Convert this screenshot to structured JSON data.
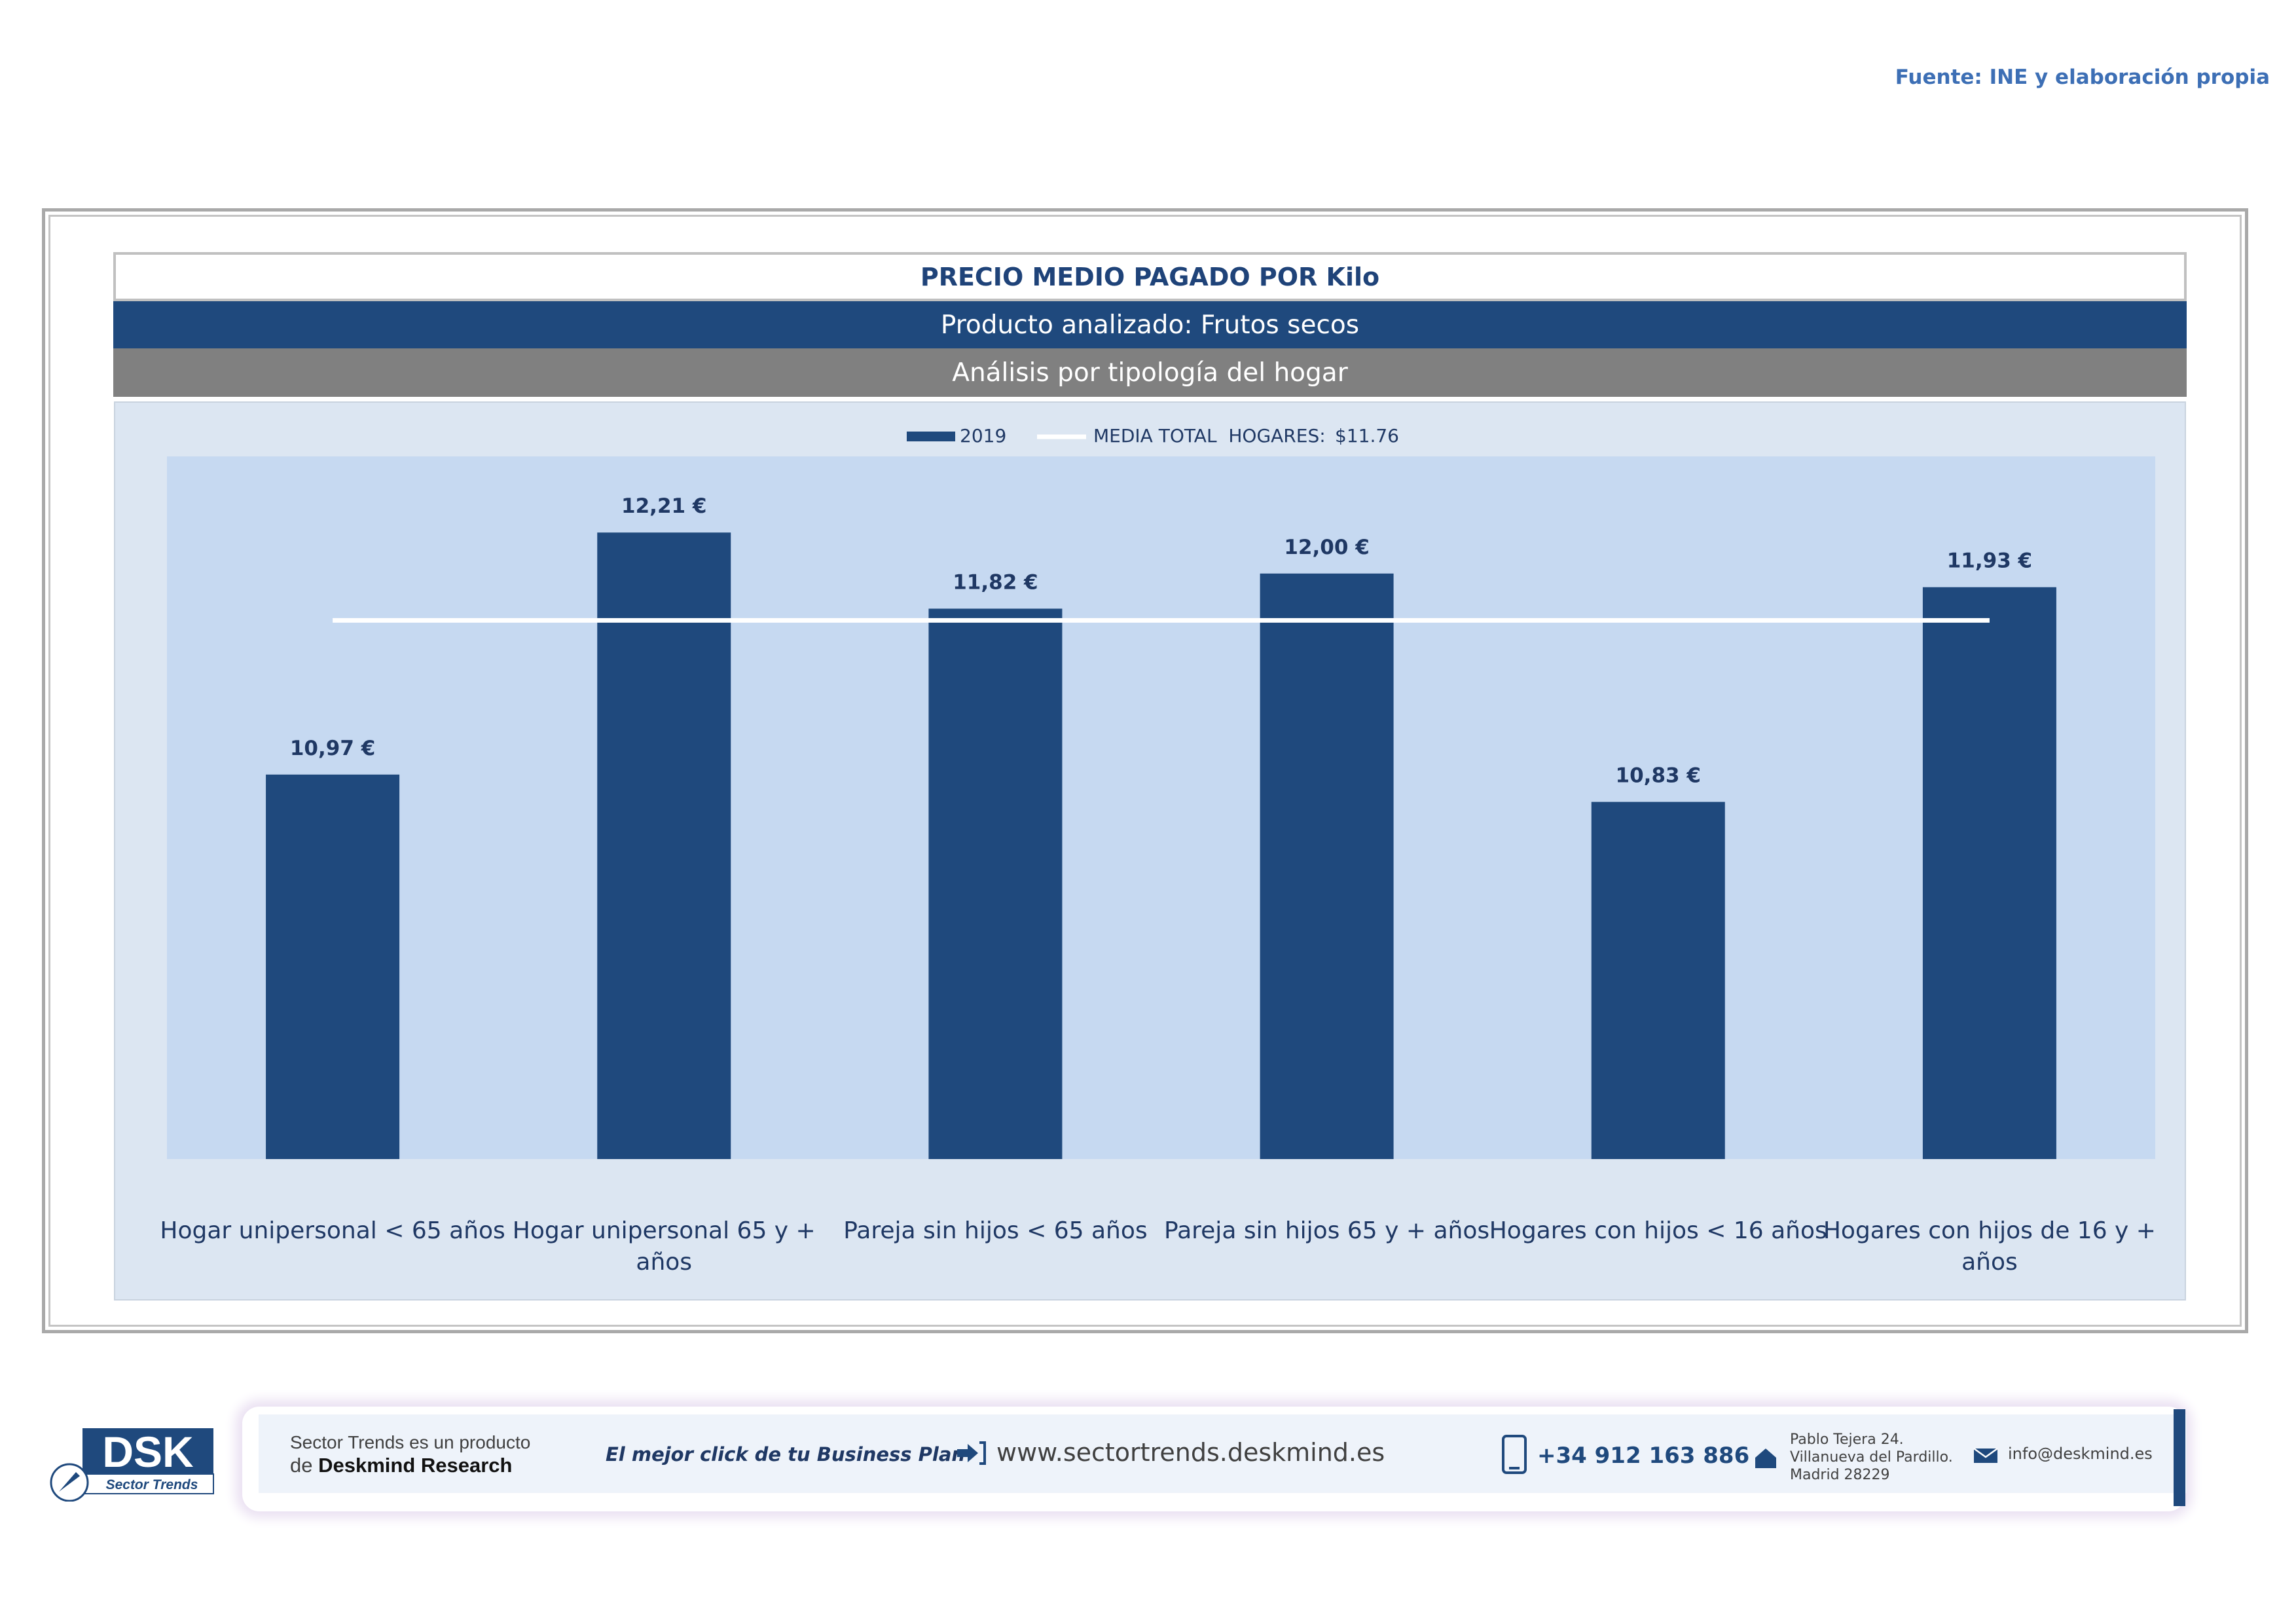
{
  "source": "Fuente: INE y elaboración propia",
  "header": {
    "title": "PRECIO MEDIO PAGADO POR Kilo",
    "product": "Producto analizado: Frutos secos",
    "analysis": "Análisis por tipología del hogar"
  },
  "chart_data": {
    "type": "bar",
    "categories": [
      [
        "Hogar unipersonal < 65 años"
      ],
      [
        "Hogar unipersonal  65 y +",
        "años"
      ],
      [
        "Pareja sin hijos < 65 años"
      ],
      [
        "Pareja sin hijos 65 y + años"
      ],
      [
        "Hogares con hijos < 16 años"
      ],
      [
        "Hogares con hijos de 16 y +",
        "años"
      ]
    ],
    "series": [
      {
        "name": "2019",
        "values": [
          10.97,
          12.21,
          11.82,
          12.0,
          10.83,
          11.93
        ],
        "labels": [
          "10,97 €",
          "12,21 €",
          "11,82 €",
          "12,00 €",
          "10,83 €",
          "11,93 €"
        ]
      }
    ],
    "reference_line": {
      "name": "MEDIA TOTAL  HOGARES:",
      "value": 11.76,
      "label": "$11.76"
    },
    "colors": {
      "bar": "#1f497d",
      "line": "#ffffff",
      "plot_bg": "#c6d9f1",
      "chart_bg": "#dce6f2"
    },
    "legend_position": "top-center",
    "ylim": [
      9.0,
      12.6
    ],
    "grid": false
  },
  "footer": {
    "logo_text": "DSK",
    "logo_subtitle": "Sector Trends",
    "product_line1": "Sector Trends es un producto",
    "product_line2_prefix": "de",
    "product_line2_brand": "Deskmind Research",
    "tagline": "El mejor click de tu Business Plan",
    "website": "www.sectortrends.deskmind.es",
    "phone": "+34 912 163 886",
    "address": [
      "Pablo Tejera 24.",
      "Villanueva del Pardillo.",
      "Madrid 28229"
    ],
    "email": "info@deskmind.es"
  }
}
